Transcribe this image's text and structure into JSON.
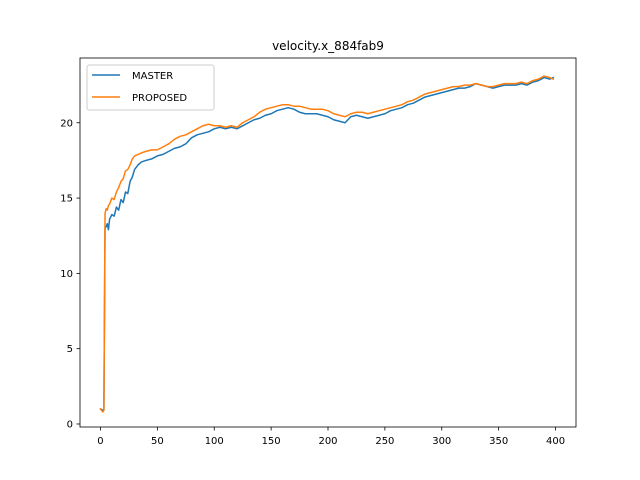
{
  "chart_data": {
    "type": "line",
    "title": "velocity.x_884fab9",
    "xlabel": "",
    "ylabel": "",
    "xlim": [
      -18,
      418
    ],
    "ylim": [
      -0.2,
      24.3
    ],
    "xticks": [
      0,
      50,
      100,
      150,
      200,
      250,
      300,
      350,
      400
    ],
    "yticks": [
      0,
      5,
      10,
      15,
      20
    ],
    "legend_position": "top-left",
    "grid": false,
    "colors": {
      "MASTER": "#1f77b4",
      "PROPOSED": "#ff7f0e"
    },
    "series": [
      {
        "name": "MASTER",
        "points": [
          [
            0,
            1.0
          ],
          [
            2,
            0.9
          ],
          [
            3,
            1.0
          ],
          [
            4,
            13.0
          ],
          [
            5,
            13.1
          ],
          [
            6,
            13.3
          ],
          [
            7,
            12.9
          ],
          [
            8,
            13.6
          ],
          [
            10,
            13.9
          ],
          [
            12,
            13.8
          ],
          [
            14,
            14.4
          ],
          [
            16,
            14.2
          ],
          [
            18,
            14.9
          ],
          [
            20,
            14.7
          ],
          [
            22,
            15.4
          ],
          [
            24,
            15.3
          ],
          [
            26,
            16.1
          ],
          [
            28,
            16.4
          ],
          [
            30,
            16.9
          ],
          [
            33,
            17.2
          ],
          [
            36,
            17.4
          ],
          [
            40,
            17.5
          ],
          [
            45,
            17.6
          ],
          [
            50,
            17.8
          ],
          [
            55,
            17.9
          ],
          [
            60,
            18.1
          ],
          [
            65,
            18.3
          ],
          [
            70,
            18.4
          ],
          [
            75,
            18.6
          ],
          [
            80,
            19.0
          ],
          [
            85,
            19.2
          ],
          [
            90,
            19.3
          ],
          [
            95,
            19.4
          ],
          [
            100,
            19.6
          ],
          [
            105,
            19.7
          ],
          [
            110,
            19.6
          ],
          [
            115,
            19.7
          ],
          [
            120,
            19.6
          ],
          [
            125,
            19.8
          ],
          [
            130,
            20.0
          ],
          [
            135,
            20.2
          ],
          [
            140,
            20.3
          ],
          [
            145,
            20.5
          ],
          [
            150,
            20.6
          ],
          [
            155,
            20.8
          ],
          [
            160,
            20.9
          ],
          [
            165,
            21.0
          ],
          [
            170,
            20.9
          ],
          [
            175,
            20.7
          ],
          [
            180,
            20.6
          ],
          [
            185,
            20.6
          ],
          [
            190,
            20.6
          ],
          [
            195,
            20.5
          ],
          [
            200,
            20.4
          ],
          [
            205,
            20.2
          ],
          [
            210,
            20.1
          ],
          [
            215,
            20.0
          ],
          [
            220,
            20.4
          ],
          [
            225,
            20.5
          ],
          [
            230,
            20.4
          ],
          [
            235,
            20.3
          ],
          [
            240,
            20.4
          ],
          [
            245,
            20.5
          ],
          [
            250,
            20.6
          ],
          [
            255,
            20.8
          ],
          [
            260,
            20.9
          ],
          [
            265,
            21.0
          ],
          [
            270,
            21.2
          ],
          [
            275,
            21.3
          ],
          [
            280,
            21.5
          ],
          [
            285,
            21.7
          ],
          [
            290,
            21.8
          ],
          [
            295,
            21.9
          ],
          [
            300,
            22.0
          ],
          [
            305,
            22.1
          ],
          [
            310,
            22.2
          ],
          [
            315,
            22.3
          ],
          [
            320,
            22.3
          ],
          [
            325,
            22.4
          ],
          [
            330,
            22.6
          ],
          [
            335,
            22.5
          ],
          [
            340,
            22.4
          ],
          [
            345,
            22.3
          ],
          [
            350,
            22.4
          ],
          [
            355,
            22.5
          ],
          [
            360,
            22.5
          ],
          [
            365,
            22.5
          ],
          [
            370,
            22.6
          ],
          [
            375,
            22.5
          ],
          [
            380,
            22.7
          ],
          [
            385,
            22.8
          ],
          [
            390,
            23.0
          ],
          [
            395,
            22.9
          ],
          [
            398,
            23.0
          ]
        ]
      },
      {
        "name": "PROPOSED",
        "points": [
          [
            0,
            1.0
          ],
          [
            2,
            0.8
          ],
          [
            3,
            0.9
          ],
          [
            4,
            14.0
          ],
          [
            5,
            14.3
          ],
          [
            6,
            14.2
          ],
          [
            7,
            14.5
          ],
          [
            8,
            14.6
          ],
          [
            10,
            15.0
          ],
          [
            12,
            14.9
          ],
          [
            14,
            15.4
          ],
          [
            16,
            15.7
          ],
          [
            18,
            16.1
          ],
          [
            20,
            16.3
          ],
          [
            22,
            16.8
          ],
          [
            24,
            16.9
          ],
          [
            26,
            17.2
          ],
          [
            28,
            17.6
          ],
          [
            30,
            17.8
          ],
          [
            33,
            17.9
          ],
          [
            36,
            18.0
          ],
          [
            40,
            18.1
          ],
          [
            45,
            18.2
          ],
          [
            50,
            18.2
          ],
          [
            55,
            18.4
          ],
          [
            60,
            18.6
          ],
          [
            65,
            18.9
          ],
          [
            70,
            19.1
          ],
          [
            75,
            19.2
          ],
          [
            80,
            19.4
          ],
          [
            85,
            19.6
          ],
          [
            90,
            19.8
          ],
          [
            95,
            19.9
          ],
          [
            100,
            19.8
          ],
          [
            105,
            19.8
          ],
          [
            110,
            19.7
          ],
          [
            115,
            19.8
          ],
          [
            120,
            19.7
          ],
          [
            125,
            20.0
          ],
          [
            130,
            20.2
          ],
          [
            135,
            20.4
          ],
          [
            140,
            20.7
          ],
          [
            145,
            20.9
          ],
          [
            150,
            21.0
          ],
          [
            155,
            21.1
          ],
          [
            160,
            21.2
          ],
          [
            165,
            21.2
          ],
          [
            170,
            21.1
          ],
          [
            175,
            21.1
          ],
          [
            180,
            21.0
          ],
          [
            185,
            20.9
          ],
          [
            190,
            20.9
          ],
          [
            195,
            20.9
          ],
          [
            200,
            20.8
          ],
          [
            205,
            20.6
          ],
          [
            210,
            20.5
          ],
          [
            215,
            20.4
          ],
          [
            220,
            20.6
          ],
          [
            225,
            20.7
          ],
          [
            230,
            20.7
          ],
          [
            235,
            20.6
          ],
          [
            240,
            20.7
          ],
          [
            245,
            20.8
          ],
          [
            250,
            20.9
          ],
          [
            255,
            21.0
          ],
          [
            260,
            21.1
          ],
          [
            265,
            21.2
          ],
          [
            270,
            21.4
          ],
          [
            275,
            21.5
          ],
          [
            280,
            21.7
          ],
          [
            285,
            21.9
          ],
          [
            290,
            22.0
          ],
          [
            295,
            22.1
          ],
          [
            300,
            22.2
          ],
          [
            305,
            22.3
          ],
          [
            310,
            22.4
          ],
          [
            315,
            22.4
          ],
          [
            320,
            22.5
          ],
          [
            325,
            22.5
          ],
          [
            330,
            22.6
          ],
          [
            335,
            22.5
          ],
          [
            340,
            22.4
          ],
          [
            345,
            22.4
          ],
          [
            350,
            22.5
          ],
          [
            355,
            22.6
          ],
          [
            360,
            22.6
          ],
          [
            365,
            22.6
          ],
          [
            370,
            22.7
          ],
          [
            375,
            22.6
          ],
          [
            380,
            22.8
          ],
          [
            385,
            22.9
          ],
          [
            390,
            23.1
          ],
          [
            395,
            23.0
          ],
          [
            398,
            22.9
          ]
        ]
      }
    ]
  }
}
